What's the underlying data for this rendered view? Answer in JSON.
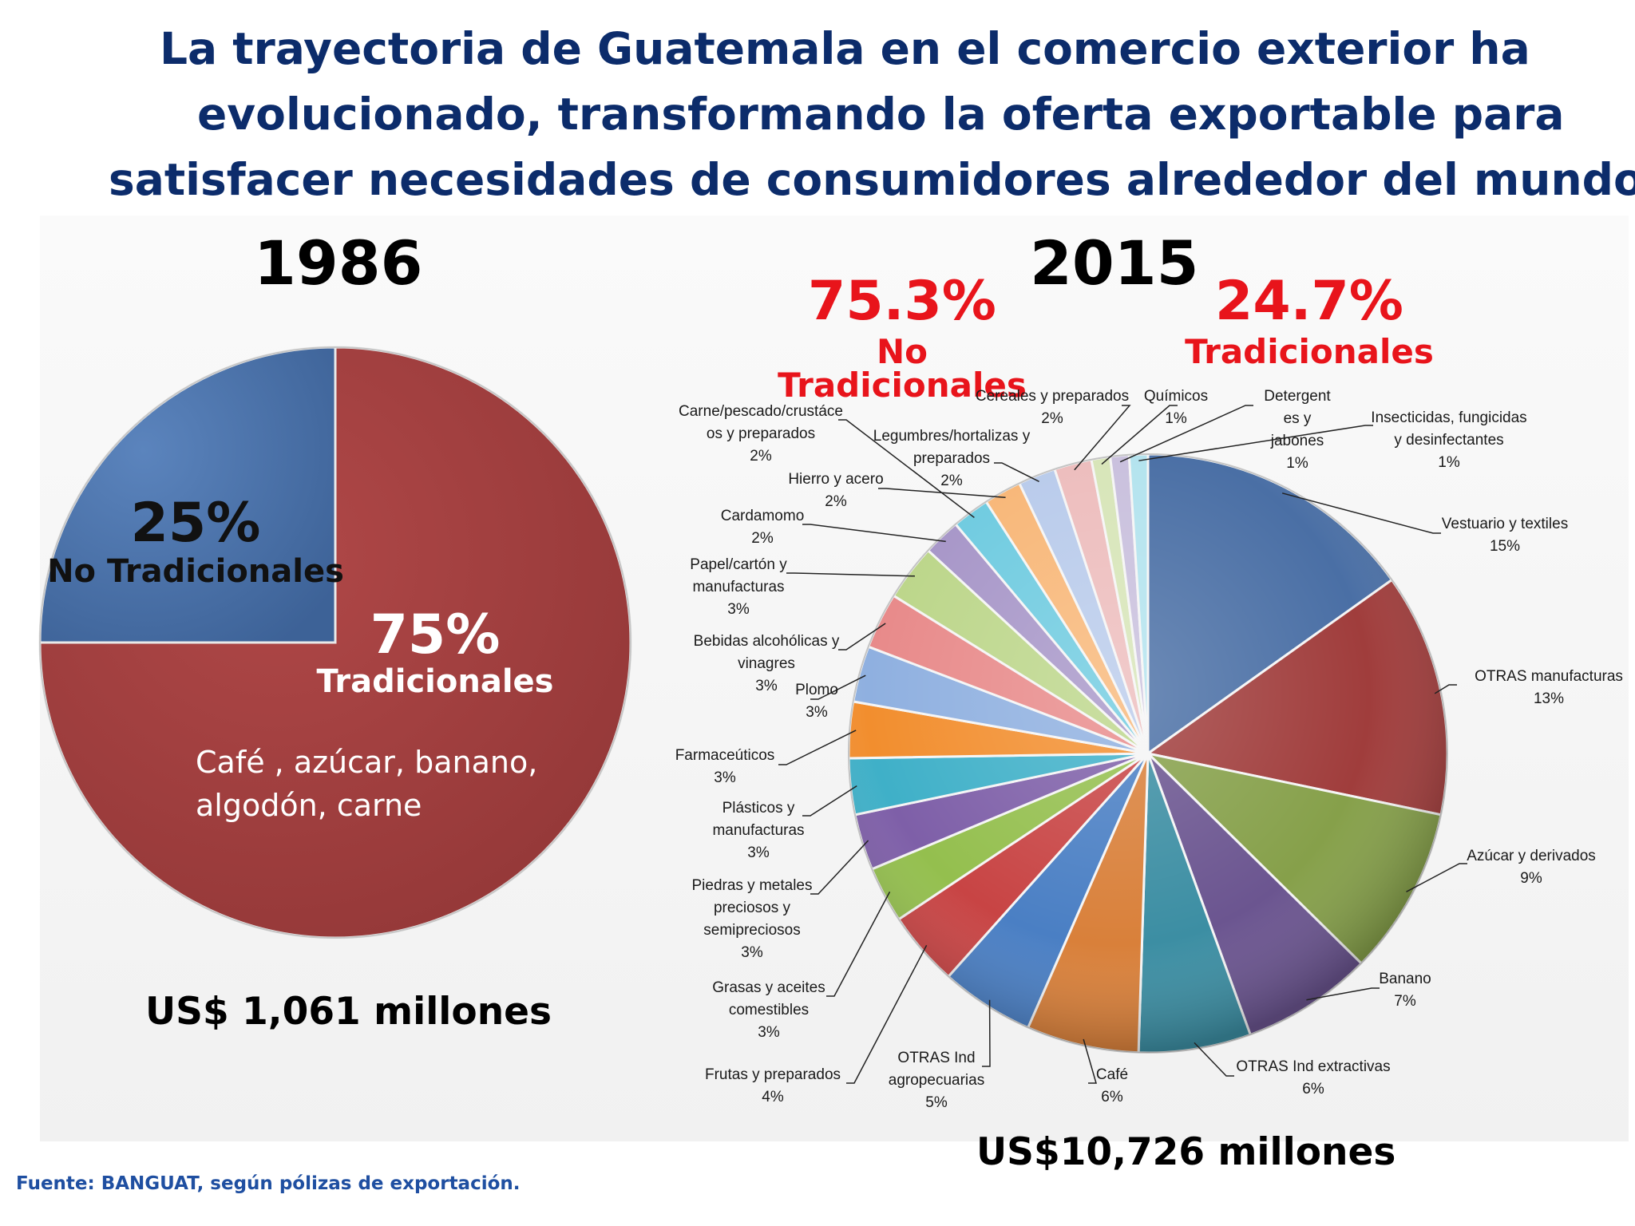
{
  "title": {
    "line1": "La trayectoria de Guatemala en el comercio exterior ha",
    "line2": "evolucionado, transformando la oferta exportable para",
    "line3": "satisfacer necesidades de consumidores alrededor del mundo"
  },
  "source": "Fuente:  BANGUAT, según pólizas de exportación.",
  "colors": {
    "title": "#0c2c6b",
    "highlight": "#e8141b",
    "blue": "#4a72a8",
    "red": "#a33f3f"
  },
  "chart_data": [
    {
      "type": "pie",
      "title": "1986",
      "total": "US$ 1,061 millones",
      "slices": [
        {
          "pct": "25%",
          "label": "No Tradicionales",
          "value": 25,
          "color": "#4a72a8"
        },
        {
          "pct": "75%",
          "label": "Tradicionales",
          "value": 75,
          "color": "#a33f3f",
          "note": "Café , azúcar, banano, algodón, carne"
        }
      ]
    },
    {
      "type": "pie",
      "title": "2015",
      "total": "US$10,726 millones",
      "summary": [
        {
          "pct": "75.3%",
          "label": "No Tradicionales"
        },
        {
          "pct": "24.7%",
          "label": "Tradicionales"
        }
      ],
      "slices": [
        {
          "lines": [
            "Vestuario y textiles",
            "15%"
          ],
          "value": 15,
          "color": "#4a6fa5"
        },
        {
          "lines": [
            "OTRAS manufacturas",
            "13%"
          ],
          "value": 13,
          "color": "#a03d3c"
        },
        {
          "lines": [
            "Azúcar y derivados",
            "9%"
          ],
          "value": 9,
          "color": "#86a04a"
        },
        {
          "lines": [
            "Banano",
            "7%"
          ],
          "value": 7,
          "color": "#6b5590"
        },
        {
          "lines": [
            "OTRAS Ind extractivas",
            "6%"
          ],
          "value": 6,
          "color": "#3c8ea3"
        },
        {
          "lines": [
            "Café",
            "6%"
          ],
          "value": 6,
          "color": "#d9803a"
        },
        {
          "lines": [
            "OTRAS Ind",
            "agropecuarias",
            "5%"
          ],
          "value": 5,
          "color": "#4a7fc4"
        },
        {
          "lines": [
            "Frutas y preparados",
            "4%"
          ],
          "value": 4,
          "color": "#c84444"
        },
        {
          "lines": [
            "Grasas y aceites",
            "comestibles",
            "3%"
          ],
          "value": 3,
          "color": "#94bf4e"
        },
        {
          "lines": [
            "Piedras y metales",
            "preciosos y",
            "semipreciosos",
            "3%"
          ],
          "value": 3,
          "color": "#7e5fa8"
        },
        {
          "lines": [
            "Plásticos y",
            "manufacturas",
            "3%"
          ],
          "value": 3,
          "color": "#3fb0c8"
        },
        {
          "lines": [
            "Farmaceúticos",
            "3%"
          ],
          "value": 3,
          "color": "#f28e2e"
        },
        {
          "lines": [
            "Plomo",
            "3%"
          ],
          "value": 3,
          "color": "#8fb0e0"
        },
        {
          "lines": [
            "Bebidas alcohólicas y",
            "vinagres",
            "3%"
          ],
          "value": 3,
          "color": "#e88a8a"
        },
        {
          "lines": [
            "Papel/cartón y",
            "manufacturas",
            "3%"
          ],
          "value": 3,
          "color": "#bcd68a"
        },
        {
          "lines": [
            "Cardamomo",
            "2%"
          ],
          "value": 2,
          "color": "#a796c8"
        },
        {
          "lines": [
            "Carne/pescado/crustáce",
            "os y preparados",
            "2%"
          ],
          "value": 2,
          "color": "#6fcbe0"
        },
        {
          "lines": [
            "Hierro y acero",
            "2%"
          ],
          "value": 2,
          "color": "#f8b778"
        },
        {
          "lines": [
            "Legumbres/hortalizas y",
            "preparados",
            "2%"
          ],
          "value": 2,
          "color": "#b9cbeb"
        },
        {
          "lines": [
            "Cereales y preparados",
            "2%"
          ],
          "value": 2,
          "color": "#edbdbd"
        },
        {
          "lines": [
            "Químicos",
            "1%"
          ],
          "value": 1,
          "color": "#d7e5b8"
        },
        {
          "lines": [
            "Detergent",
            "es y",
            "jabones",
            "1%"
          ],
          "value": 1,
          "color": "#c9c0dd"
        },
        {
          "lines": [
            "Insecticidas, fungicidas",
            "y desinfectantes",
            "1%"
          ],
          "value": 1,
          "color": "#b3e3ee"
        }
      ]
    }
  ]
}
